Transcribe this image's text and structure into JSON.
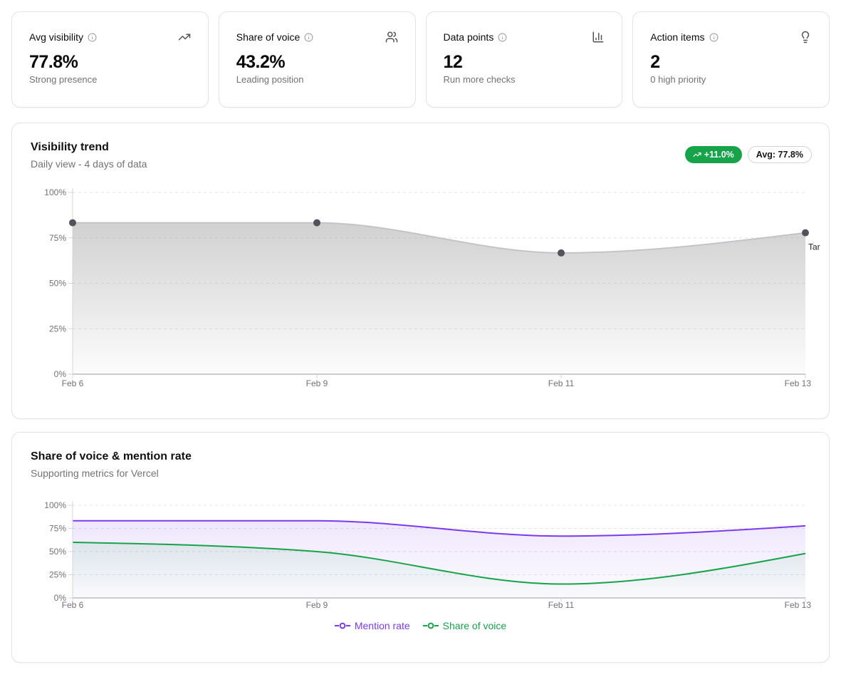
{
  "stats": [
    {
      "label": "Avg visibility",
      "value": "77.8%",
      "sub": "Strong presence",
      "icon": "trending-up-icon"
    },
    {
      "label": "Share of voice",
      "value": "43.2%",
      "sub": "Leading position",
      "icon": "users-icon"
    },
    {
      "label": "Data points",
      "value": "12",
      "sub": "Run more checks",
      "icon": "bar-chart-icon"
    },
    {
      "label": "Action items",
      "value": "2",
      "sub": "0 high priority",
      "icon": "lightbulb-icon"
    }
  ],
  "visibility_card": {
    "title": "Visibility trend",
    "subtitle": "Daily view - 4 days of data",
    "change_badge": "+11.0%",
    "change_badge_color": "#16a34a",
    "avg_badge": "Avg: 77.8%",
    "target_label": "Tar"
  },
  "sov_card": {
    "title": "Share of voice & mention rate",
    "subtitle": "Supporting metrics for Vercel"
  },
  "chart_data": [
    {
      "id": "visibility-trend",
      "type": "area",
      "title": "Visibility trend",
      "x": [
        "Feb 6",
        "Feb 9",
        "Feb 11",
        "Feb 13"
      ],
      "series": [
        {
          "name": "Visibility",
          "values": [
            83.3,
            83.3,
            66.7,
            77.8
          ],
          "color": "#c4c4c8",
          "fill_top": "rgba(163,163,163,0.50)",
          "fill_bottom": "rgba(163,163,163,0.03)",
          "dots": true,
          "dot_color": "#52525b"
        }
      ],
      "y_ticks": [
        "0%",
        "25%",
        "50%",
        "75%",
        "100%"
      ],
      "ylim": [
        0,
        100
      ],
      "grid": "dashed",
      "legend_position": "none",
      "annotations": [
        {
          "text": "Tar",
          "y": 70
        }
      ]
    },
    {
      "id": "sov-mention-rate",
      "type": "line-area",
      "title": "Share of voice & mention rate",
      "x": [
        "Feb 6",
        "Feb 9",
        "Feb 11",
        "Feb 13"
      ],
      "series": [
        {
          "name": "Mention rate",
          "values": [
            83.3,
            83.3,
            66.7,
            77.8
          ],
          "color": "#7c3aed",
          "fill_top": "rgba(124,58,237,0.12)",
          "fill_bottom": "rgba(124,58,237,0.02)",
          "dots": false
        },
        {
          "name": "Share of voice",
          "values": [
            60,
            50,
            15,
            48
          ],
          "color": "#16a34a",
          "fill_top": "rgba(22,163,74,0.10)",
          "fill_bottom": "rgba(22,163,74,0.01)",
          "dots": false
        }
      ],
      "y_ticks": [
        "0%",
        "25%",
        "50%",
        "75%",
        "100%"
      ],
      "ylim": [
        0,
        100
      ],
      "grid": "dashed",
      "legend_position": "bottom",
      "legend": [
        {
          "label": "Mention rate",
          "color": "#7c3aed"
        },
        {
          "label": "Share of voice",
          "color": "#16a34a"
        }
      ]
    }
  ]
}
